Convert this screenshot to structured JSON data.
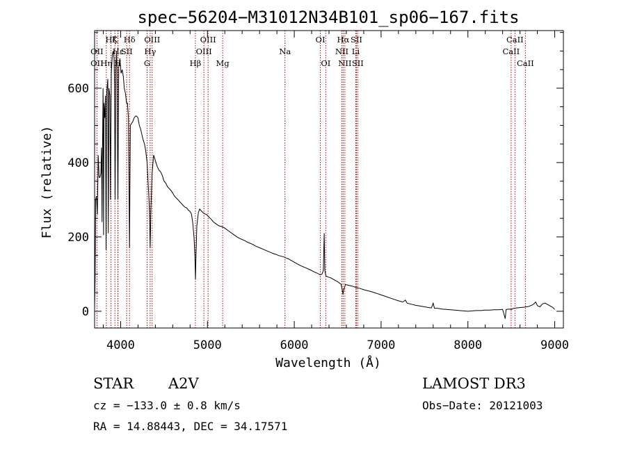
{
  "chart_data": {
    "type": "line",
    "title": "spec−56204−M31012N34B101_sp06−167.fits",
    "xlabel": "Wavelength (Å)",
    "ylabel": "Flux (relative)",
    "xlim": [
      3700,
      9100
    ],
    "ylim": [
      -45,
      755
    ],
    "x_ticks": [
      4000,
      5000,
      6000,
      7000,
      8000,
      9000
    ],
    "y_ticks": [
      0,
      200,
      400,
      600
    ],
    "x_minor_step": 200,
    "y_minor_step": 50,
    "series": [
      {
        "name": "spectrum",
        "points": [
          [
            3700,
            10
          ],
          [
            3706,
            80
          ],
          [
            3712,
            300
          ],
          [
            3722,
            310
          ],
          [
            3732,
            260
          ],
          [
            3742,
            420
          ],
          [
            3752,
            360
          ],
          [
            3762,
            360
          ],
          [
            3772,
            370
          ],
          [
            3780,
            440
          ],
          [
            3786,
            240
          ],
          [
            3790,
            410
          ],
          [
            3798,
            600
          ],
          [
            3803,
            205
          ],
          [
            3808,
            560
          ],
          [
            3818,
            520
          ],
          [
            3825,
            580
          ],
          [
            3832,
            165
          ],
          [
            3840,
            590
          ],
          [
            3852,
            625
          ],
          [
            3858,
            210
          ],
          [
            3866,
            600
          ],
          [
            3876,
            580
          ],
          [
            3883,
            300
          ],
          [
            3892,
            640
          ],
          [
            3904,
            690
          ],
          [
            3914,
            700
          ],
          [
            3924,
            680
          ],
          [
            3930,
            610
          ],
          [
            3936,
            300
          ],
          [
            3944,
            650
          ],
          [
            3952,
            700
          ],
          [
            3958,
            660
          ],
          [
            3968,
            300
          ],
          [
            3978,
            655
          ],
          [
            3992,
            680
          ],
          [
            4005,
            640
          ],
          [
            4018,
            650
          ],
          [
            4032,
            630
          ],
          [
            4042,
            600
          ],
          [
            4056,
            585
          ],
          [
            4068,
            560
          ],
          [
            4078,
            560
          ],
          [
            4090,
            520
          ],
          [
            4102,
            170
          ],
          [
            4112,
            500
          ],
          [
            4125,
            505
          ],
          [
            4140,
            510
          ],
          [
            4155,
            520
          ],
          [
            4170,
            525
          ],
          [
            4185,
            525
          ],
          [
            4200,
            520
          ],
          [
            4215,
            500
          ],
          [
            4230,
            490
          ],
          [
            4245,
            475
          ],
          [
            4260,
            460
          ],
          [
            4275,
            450
          ],
          [
            4290,
            430
          ],
          [
            4305,
            400
          ],
          [
            4320,
            330
          ],
          [
            4332,
            270
          ],
          [
            4340,
            170
          ],
          [
            4348,
            270
          ],
          [
            4362,
            370
          ],
          [
            4380,
            420
          ],
          [
            4400,
            405
          ],
          [
            4420,
            390
          ],
          [
            4440,
            380
          ],
          [
            4460,
            375
          ],
          [
            4480,
            365
          ],
          [
            4500,
            350
          ],
          [
            4520,
            345
          ],
          [
            4540,
            335
          ],
          [
            4560,
            330
          ],
          [
            4580,
            325
          ],
          [
            4600,
            318
          ],
          [
            4620,
            310
          ],
          [
            4640,
            305
          ],
          [
            4660,
            300
          ],
          [
            4680,
            295
          ],
          [
            4700,
            290
          ],
          [
            4720,
            285
          ],
          [
            4740,
            280
          ],
          [
            4760,
            278
          ],
          [
            4780,
            272
          ],
          [
            4800,
            268
          ],
          [
            4815,
            262
          ],
          [
            4830,
            240
          ],
          [
            4845,
            200
          ],
          [
            4855,
            150
          ],
          [
            4862,
            85
          ],
          [
            4868,
            150
          ],
          [
            4878,
            230
          ],
          [
            4895,
            265
          ],
          [
            4910,
            275
          ],
          [
            4930,
            270
          ],
          [
            4950,
            265
          ],
          [
            4970,
            262
          ],
          [
            4990,
            260
          ],
          [
            5010,
            255
          ],
          [
            5040,
            248
          ],
          [
            5070,
            240
          ],
          [
            5100,
            235
          ],
          [
            5130,
            230
          ],
          [
            5160,
            228
          ],
          [
            5190,
            225
          ],
          [
            5220,
            220
          ],
          [
            5250,
            215
          ],
          [
            5280,
            210
          ],
          [
            5310,
            205
          ],
          [
            5340,
            200
          ],
          [
            5370,
            196
          ],
          [
            5400,
            193
          ],
          [
            5430,
            190
          ],
          [
            5460,
            186
          ],
          [
            5490,
            183
          ],
          [
            5520,
            180
          ],
          [
            5550,
            176
          ],
          [
            5580,
            173
          ],
          [
            5610,
            170
          ],
          [
            5640,
            167
          ],
          [
            5670,
            164
          ],
          [
            5700,
            161
          ],
          [
            5730,
            158
          ],
          [
            5760,
            155
          ],
          [
            5790,
            153
          ],
          [
            5820,
            150
          ],
          [
            5850,
            148
          ],
          [
            5880,
            146
          ],
          [
            5910,
            143
          ],
          [
            5940,
            140
          ],
          [
            5970,
            136
          ],
          [
            6000,
            132
          ],
          [
            6030,
            128
          ],
          [
            6060,
            124
          ],
          [
            6090,
            121
          ],
          [
            6120,
            118
          ],
          [
            6150,
            115
          ],
          [
            6180,
            112
          ],
          [
            6210,
            108
          ],
          [
            6240,
            105
          ],
          [
            6270,
            102
          ],
          [
            6300,
            98
          ],
          [
            6320,
            100
          ],
          [
            6335,
            110
          ],
          [
            6345,
            210
          ],
          [
            6352,
            110
          ],
          [
            6365,
            95
          ],
          [
            6390,
            92
          ],
          [
            6420,
            90
          ],
          [
            6450,
            86
          ],
          [
            6480,
            82
          ],
          [
            6510,
            78
          ],
          [
            6540,
            72
          ],
          [
            6555,
            55
          ],
          [
            6562,
            45
          ],
          [
            6570,
            58
          ],
          [
            6590,
            72
          ],
          [
            6620,
            70
          ],
          [
            6660,
            68
          ],
          [
            6700,
            65
          ],
          [
            6750,
            62
          ],
          [
            6800,
            58
          ],
          [
            6850,
            55
          ],
          [
            6900,
            52
          ],
          [
            6950,
            48
          ],
          [
            7000,
            44
          ],
          [
            7050,
            40
          ],
          [
            7100,
            36
          ],
          [
            7150,
            32
          ],
          [
            7200,
            28
          ],
          [
            7250,
            25
          ],
          [
            7280,
            30
          ],
          [
            7300,
            22
          ],
          [
            7350,
            19
          ],
          [
            7400,
            16
          ],
          [
            7450,
            14
          ],
          [
            7500,
            12
          ],
          [
            7550,
            10
          ],
          [
            7580,
            9
          ],
          [
            7600,
            22
          ],
          [
            7615,
            8
          ],
          [
            7650,
            8
          ],
          [
            7700,
            6
          ],
          [
            7750,
            5
          ],
          [
            7800,
            4
          ],
          [
            7850,
            3
          ],
          [
            7900,
            2
          ],
          [
            7950,
            1
          ],
          [
            8000,
            0
          ],
          [
            8050,
            1
          ],
          [
            8100,
            2
          ],
          [
            8150,
            2
          ],
          [
            8200,
            3
          ],
          [
            8250,
            3
          ],
          [
            8300,
            4
          ],
          [
            8350,
            4
          ],
          [
            8400,
            5
          ],
          [
            8430,
            -20
          ],
          [
            8440,
            5
          ],
          [
            8470,
            6
          ],
          [
            8500,
            5
          ],
          [
            8530,
            8
          ],
          [
            8560,
            9
          ],
          [
            8600,
            10
          ],
          [
            8650,
            11
          ],
          [
            8700,
            13
          ],
          [
            8750,
            18
          ],
          [
            8780,
            25
          ],
          [
            8800,
            15
          ],
          [
            8830,
            12
          ],
          [
            8860,
            20
          ],
          [
            8890,
            22
          ],
          [
            8920,
            18
          ],
          [
            8950,
            14
          ],
          [
            8980,
            10
          ],
          [
            9000,
            5
          ]
        ]
      }
    ],
    "spectral_lines": [
      {
        "label": "Hζ",
        "wavelength": 3889,
        "row": 1
      },
      {
        "label": "OII",
        "wavelength": 3727,
        "row": 2
      },
      {
        "label": "OII",
        "wavelength": 3727,
        "row": 3
      },
      {
        "label": "Hε",
        "wavelength": 3970,
        "row": 2
      },
      {
        "label": "Hη",
        "wavelength": 3835,
        "row": 3
      },
      {
        "label": "K",
        "wavelength": 3934,
        "row": 1
      },
      {
        "label": "Hδ",
        "wavelength": 4102,
        "row": 1
      },
      {
        "label": "SII",
        "wavelength": 4070,
        "row": 2
      },
      {
        "label": "H",
        "wavelength": 3968,
        "row": 3
      },
      {
        "label": "OIII",
        "wavelength": 4363,
        "row": 1
      },
      {
        "label": "Hγ",
        "wavelength": 4340,
        "row": 2
      },
      {
        "label": "G",
        "wavelength": 4305,
        "row": 3
      },
      {
        "label": "OIII",
        "wavelength": 5007,
        "row": 1
      },
      {
        "label": "OIII",
        "wavelength": 4959,
        "row": 2
      },
      {
        "label": "Hβ",
        "wavelength": 4861,
        "row": 3
      },
      {
        "label": "Mg",
        "wavelength": 5175,
        "row": 3
      },
      {
        "label": "Na",
        "wavelength": 5893,
        "row": 2
      },
      {
        "label": "OI",
        "wavelength": 6300,
        "row": 1
      },
      {
        "label": "OI",
        "wavelength": 6363,
        "row": 3
      },
      {
        "label": "Hα",
        "wavelength": 6563,
        "row": 1
      },
      {
        "label": "NII",
        "wavelength": 6548,
        "row": 2
      },
      {
        "label": "NII",
        "wavelength": 6583,
        "row": 3
      },
      {
        "label": "SII",
        "wavelength": 6716,
        "row": 1
      },
      {
        "label": "SII",
        "wavelength": 6731,
        "row": 3
      },
      {
        "label": "Li",
        "wavelength": 6708,
        "row": 2
      },
      {
        "label": "CaII",
        "wavelength": 8542,
        "row": 1
      },
      {
        "label": "CaII",
        "wavelength": 8498,
        "row": 2
      },
      {
        "label": "CaII",
        "wavelength": 8662,
        "row": 3
      }
    ]
  },
  "info": {
    "object_class": "STAR",
    "subclass": "A2V",
    "survey": "LAMOST DR3",
    "cz": "cz = −133.0 ± 0.8 km/s",
    "obs_date": "Obs−Date: 20121003",
    "coords": "RA =  14.88443, DEC =  34.17571"
  }
}
